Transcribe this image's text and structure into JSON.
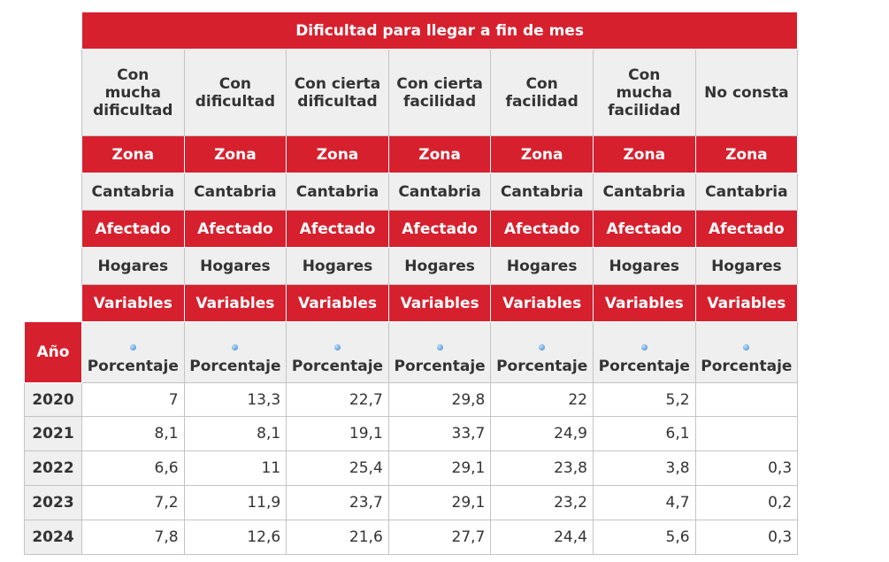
{
  "title": "Dificultad para llegar a fin de mes",
  "columns": [
    "Con mucha dificultad",
    "Con dificultad",
    "Con cierta dificultad",
    "Con cierta facilidad",
    "Con facilidad",
    "Con mucha facilidad",
    "No consta"
  ],
  "zona_label": "Zona",
  "zona_value": "Cantabria",
  "afectado_label": "Afectado",
  "afectado_value": "Hogares",
  "variables_label": "Variables",
  "variable": "Porcentaje",
  "year_header": "Año",
  "colors": {
    "header_red": "#d7202e",
    "header_gray": "#efefef"
  },
  "rows": [
    {
      "year": "2020",
      "values": [
        "7",
        "13,3",
        "22,7",
        "29,8",
        "22",
        "5,2",
        ""
      ]
    },
    {
      "year": "2021",
      "values": [
        "8,1",
        "8,1",
        "19,1",
        "33,7",
        "24,9",
        "6,1",
        ""
      ]
    },
    {
      "year": "2022",
      "values": [
        "6,6",
        "11",
        "25,4",
        "29,1",
        "23,8",
        "3,8",
        "0,3"
      ]
    },
    {
      "year": "2023",
      "values": [
        "7,2",
        "11,9",
        "23,7",
        "29,1",
        "23,2",
        "4,7",
        "0,2"
      ]
    },
    {
      "year": "2024",
      "values": [
        "7,8",
        "12,6",
        "21,6",
        "27,7",
        "24,4",
        "5,6",
        "0,3"
      ]
    }
  ]
}
